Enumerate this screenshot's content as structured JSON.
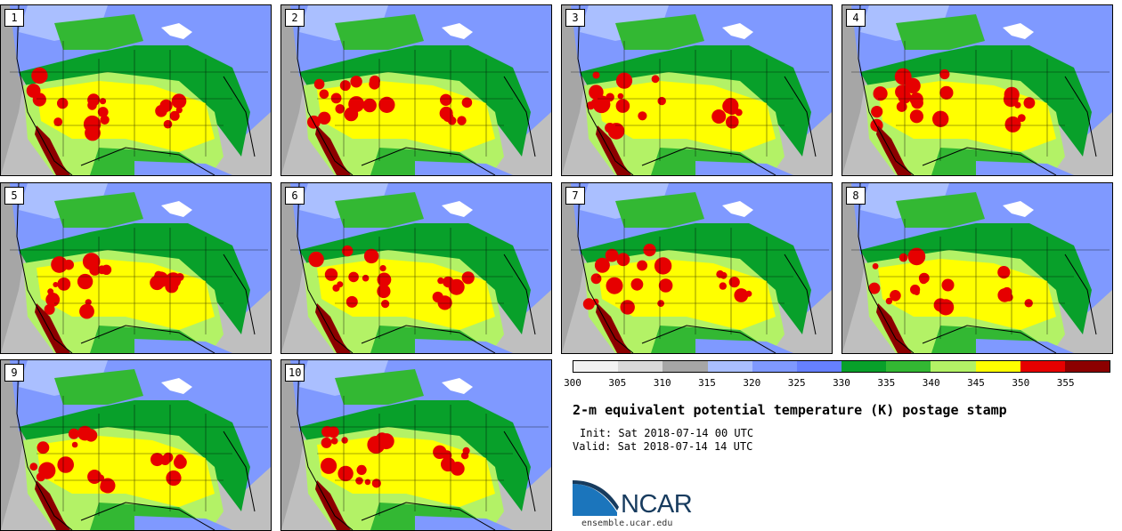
{
  "panels": [
    {
      "label": "1"
    },
    {
      "label": "2"
    },
    {
      "label": "3"
    },
    {
      "label": "4"
    },
    {
      "label": "5"
    },
    {
      "label": "6"
    },
    {
      "label": "7"
    },
    {
      "label": "8"
    },
    {
      "label": "9"
    },
    {
      "label": "10"
    }
  ],
  "colorbar": {
    "colors": [
      "#f2f2f2",
      "#d9d9d9",
      "#a6a6a6",
      "#aabfff",
      "#7f99ff",
      "#6680ff",
      "#08a02a",
      "#33b833",
      "#b3f266",
      "#ffff00",
      "#e60000",
      "#8c0000"
    ],
    "ticks": [
      "300",
      "305",
      "310",
      "315",
      "320",
      "325",
      "330",
      "335",
      "340",
      "345",
      "350",
      "355"
    ]
  },
  "title": "2-m equivalent potential temperature (K) postage stamp",
  "init": "Init: Sat 2018-07-14 00 UTC",
  "valid": "Valid: Sat 2018-07-14 14 UTC",
  "logo": {
    "text": "NCAR",
    "colors": {
      "blue": "#1b75bc",
      "navy": "#173b5e"
    }
  },
  "site": "ensemble.ucar.edu"
}
